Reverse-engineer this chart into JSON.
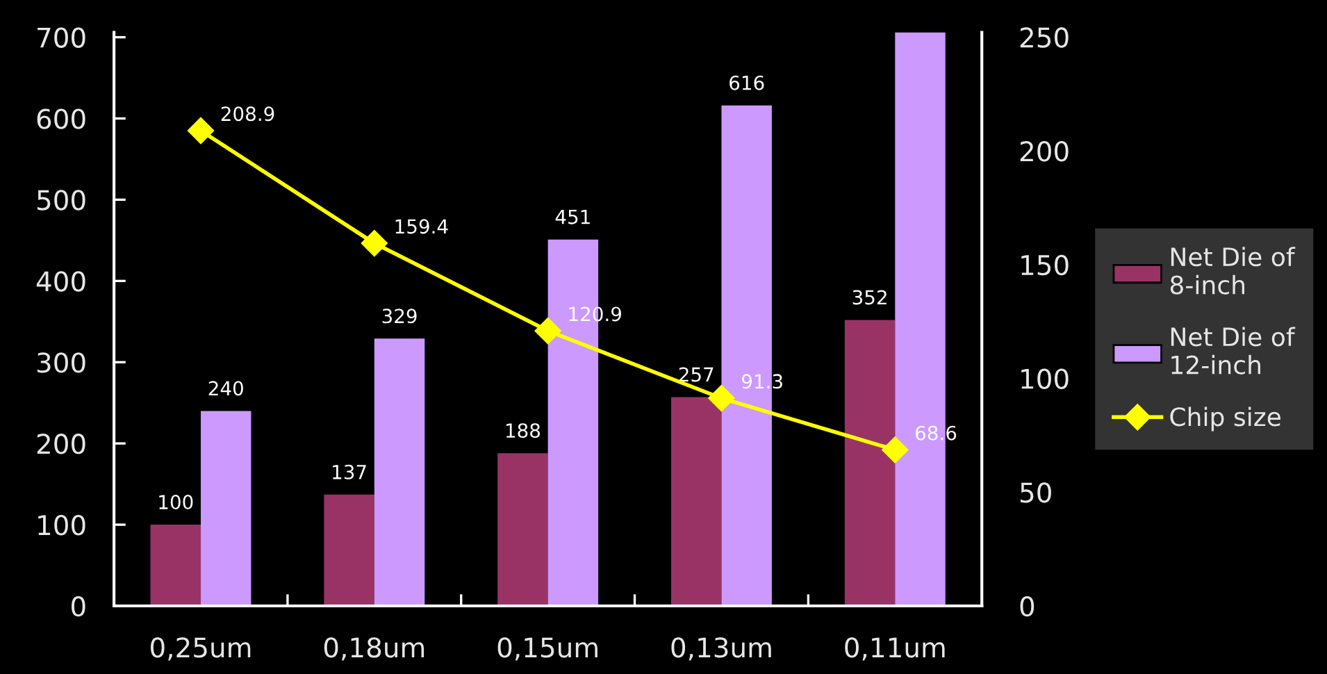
{
  "chart_data": {
    "type": "bar",
    "categories": [
      "0,25um",
      "0,18um",
      "0,15um",
      "0,13um",
      "0,11um"
    ],
    "series": [
      {
        "name": "Net Die of\n8-inch",
        "color": "#993366",
        "values": [
          100,
          137,
          188,
          257,
          352
        ],
        "value_labels": [
          "100",
          "137",
          "188",
          "257",
          "352"
        ]
      },
      {
        "name": "Net Die of\n12-inch",
        "color": "#cc99ff",
        "values": [
          240,
          329,
          451,
          616,
          706
        ],
        "value_labels": [
          "240",
          "329",
          "451",
          "616",
          null
        ]
      },
      {
        "name": "Chip size",
        "type": "line",
        "axis": "y2",
        "color": "#ffff00",
        "marker": "diamond",
        "line_style": "solid",
        "values": [
          208.9,
          159.4,
          120.9,
          91.3,
          68.6
        ],
        "value_labels": [
          "208.9",
          "159.4",
          "120.9",
          "91.3",
          "68.6"
        ]
      }
    ],
    "ylim": [
      0,
      706
    ],
    "yticks": [
      0,
      100,
      200,
      300,
      400,
      500,
      600,
      700
    ],
    "y2lim": [
      0,
      252.1
    ],
    "y2ticks": [
      0,
      50,
      100,
      150,
      200,
      250
    ],
    "legend": "right"
  }
}
